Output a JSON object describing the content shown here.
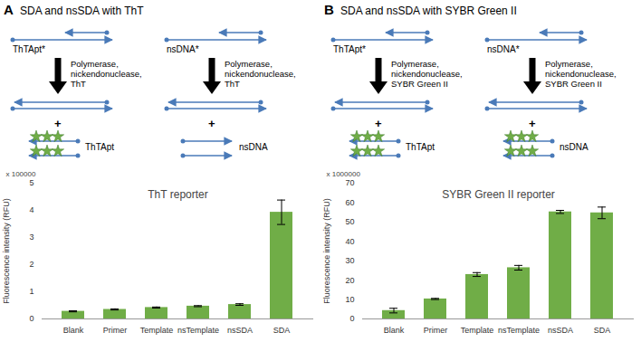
{
  "panels": [
    {
      "letter": "A",
      "heading": "SDA and nsSDA with ThT",
      "diagram": {
        "inputs": [
          "ThTApt*",
          "nsDNA*"
        ],
        "enzymes": [
          "Polymerase,",
          "nickendonuclease,",
          "ThT"
        ],
        "products": [
          {
            "label": "ThTApt",
            "stars": true
          },
          {
            "label": "nsDNA",
            "stars": false
          }
        ],
        "plus": "+"
      }
    },
    {
      "letter": "B",
      "heading": "SDA and nsSDA with SYBR Green II",
      "diagram": {
        "inputs": [
          "ThTApt*",
          "nsDNA*"
        ],
        "enzymes": [
          "Polymerase,",
          "nickendonuclease,",
          "SYBR Green II"
        ],
        "products": [
          {
            "label": "ThTApt",
            "stars": true
          },
          {
            "label": "nsDNA",
            "stars": true
          }
        ],
        "plus": "+"
      }
    }
  ],
  "chart_data": [
    {
      "type": "bar",
      "title": "ThT reporter",
      "ylabel": "Fluorescence intensity (RFU)",
      "annotations": [
        "x 100000"
      ],
      "categories": [
        "Blank",
        "Primer",
        "Template",
        "nsTemplate",
        "nsSDA",
        "SDA"
      ],
      "values": [
        0.28,
        0.35,
        0.42,
        0.47,
        0.53,
        3.93
      ],
      "errors": [
        0.02,
        0.02,
        0.02,
        0.02,
        0.03,
        0.45
      ],
      "color": "#70ad47",
      "ylim": [
        0,
        5
      ],
      "yticks": [
        0,
        1,
        2,
        3,
        4,
        5
      ],
      "grid": false
    },
    {
      "type": "bar",
      "title": "SYBR Green II reporter",
      "ylabel": "Fluorescence intensity (RFU)",
      "annotations": [
        "x 1000000"
      ],
      "categories": [
        "Blank",
        "Primer",
        "Template",
        "nsTemplate",
        "nsSDA",
        "SDA"
      ],
      "values": [
        4.3,
        10.3,
        22.9,
        26.4,
        55.2,
        54.7
      ],
      "errors": [
        1.2,
        0.3,
        1.0,
        1.2,
        0.8,
        3.0
      ],
      "color": "#70ad47",
      "ylim": [
        0,
        70
      ],
      "yticks": [
        0,
        10,
        20,
        30,
        40,
        50,
        60,
        70
      ],
      "grid": false
    }
  ]
}
